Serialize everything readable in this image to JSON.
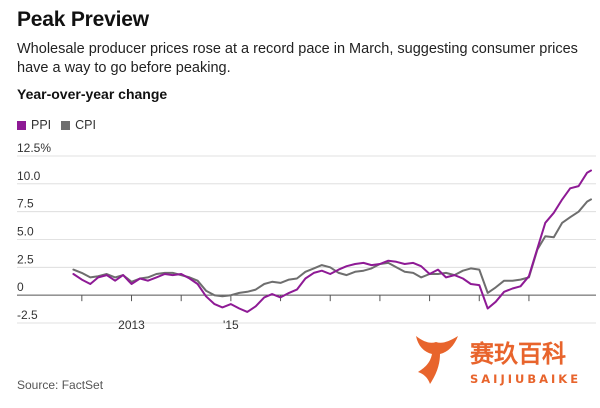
{
  "header": {
    "title": "Peak Preview",
    "subtitle": "Wholesale producer prices rose at a record pace in March, suggesting consumer prices have a way to go before peaking.",
    "section_label": "Year-over-year change"
  },
  "source": "Source: FactSet",
  "watermark": {
    "cn": "赛玖百科",
    "en": "SAIJIUBAIKE"
  },
  "chart_data": {
    "type": "line",
    "title": "Year-over-year change",
    "ylabel": "",
    "xlabel": "",
    "ylim": [
      -2.5,
      12.5
    ],
    "xlim": [
      2011.5,
      2022.35
    ],
    "y_ticks": [
      -2.5,
      0,
      2.5,
      5.0,
      7.5,
      10.0,
      12.5
    ],
    "y_tick_labels": [
      "-2.5",
      "0",
      "2.5",
      "5.0",
      "7.5",
      "10.0",
      "12.5%"
    ],
    "x_ticks": [
      2012,
      2013,
      2014,
      2015,
      2016,
      2017,
      2018,
      2019,
      2020,
      2021
    ],
    "x_tick_labels": [
      {
        "x": 2013,
        "label": "2013"
      },
      {
        "x": 2015,
        "label": "'15"
      }
    ],
    "grid": "horizontal",
    "legend": "top-left",
    "series": [
      {
        "name": "PPI",
        "color": "#8e1a95",
        "x": [
          2011.83,
          2012.0,
          2012.17,
          2012.33,
          2012.5,
          2012.67,
          2012.83,
          2013.0,
          2013.17,
          2013.33,
          2013.5,
          2013.67,
          2013.83,
          2014.0,
          2014.17,
          2014.33,
          2014.5,
          2014.67,
          2014.83,
          2015.0,
          2015.17,
          2015.33,
          2015.5,
          2015.67,
          2015.83,
          2016.0,
          2016.17,
          2016.33,
          2016.5,
          2016.67,
          2016.83,
          2017.0,
          2017.17,
          2017.33,
          2017.5,
          2017.67,
          2017.83,
          2018.0,
          2018.17,
          2018.33,
          2018.5,
          2018.67,
          2018.83,
          2019.0,
          2019.17,
          2019.33,
          2019.5,
          2019.67,
          2019.83,
          2020.0,
          2020.17,
          2020.33,
          2020.5,
          2020.67,
          2020.83,
          2021.0,
          2021.17,
          2021.33,
          2021.5,
          2021.67,
          2021.83,
          2022.0,
          2022.17,
          2022.25
        ],
        "values": [
          1.9,
          1.4,
          1.0,
          1.6,
          1.8,
          1.3,
          1.8,
          1.0,
          1.5,
          1.3,
          1.6,
          1.9,
          1.8,
          1.9,
          1.5,
          1.0,
          -0.1,
          -0.8,
          -1.1,
          -0.8,
          -1.2,
          -1.5,
          -1.0,
          -0.2,
          0.1,
          -0.2,
          0.2,
          0.5,
          1.5,
          2.0,
          2.2,
          1.9,
          2.3,
          2.6,
          2.8,
          2.9,
          2.7,
          2.8,
          3.1,
          3.0,
          2.8,
          2.9,
          2.6,
          1.9,
          2.3,
          1.6,
          1.8,
          1.5,
          1.0,
          0.9,
          -1.2,
          -0.6,
          0.3,
          0.6,
          0.8,
          1.7,
          4.2,
          6.5,
          7.4,
          8.6,
          9.6,
          9.8,
          11.0,
          11.2
        ]
      },
      {
        "name": "CPI",
        "color": "#6e6e6e",
        "x": [
          2011.83,
          2012.0,
          2012.17,
          2012.33,
          2012.5,
          2012.67,
          2012.83,
          2013.0,
          2013.17,
          2013.33,
          2013.5,
          2013.67,
          2013.83,
          2014.0,
          2014.17,
          2014.33,
          2014.5,
          2014.67,
          2014.83,
          2015.0,
          2015.17,
          2015.33,
          2015.5,
          2015.67,
          2015.83,
          2016.0,
          2016.17,
          2016.33,
          2016.5,
          2016.67,
          2016.83,
          2017.0,
          2017.17,
          2017.33,
          2017.5,
          2017.67,
          2017.83,
          2018.0,
          2018.17,
          2018.33,
          2018.5,
          2018.67,
          2018.83,
          2019.0,
          2019.17,
          2019.33,
          2019.5,
          2019.67,
          2019.83,
          2020.0,
          2020.17,
          2020.33,
          2020.5,
          2020.67,
          2020.83,
          2021.0,
          2021.17,
          2021.33,
          2021.5,
          2021.67,
          2021.83,
          2022.0,
          2022.17,
          2022.25
        ],
        "values": [
          2.3,
          2.0,
          1.6,
          1.7,
          1.9,
          1.6,
          1.8,
          1.2,
          1.5,
          1.6,
          1.9,
          2.0,
          2.0,
          1.8,
          1.6,
          1.3,
          0.4,
          0.0,
          -0.1,
          0.0,
          0.2,
          0.3,
          0.5,
          1.0,
          1.2,
          1.1,
          1.4,
          1.5,
          2.1,
          2.4,
          2.7,
          2.5,
          2.0,
          1.8,
          2.1,
          2.2,
          2.4,
          2.8,
          2.9,
          2.5,
          2.1,
          2.0,
          1.6,
          1.9,
          1.9,
          2.0,
          1.8,
          2.2,
          2.4,
          2.3,
          0.2,
          0.7,
          1.3,
          1.3,
          1.4,
          1.6,
          4.1,
          5.3,
          5.2,
          6.5,
          7.0,
          7.5,
          8.4,
          8.6
        ]
      }
    ]
  }
}
